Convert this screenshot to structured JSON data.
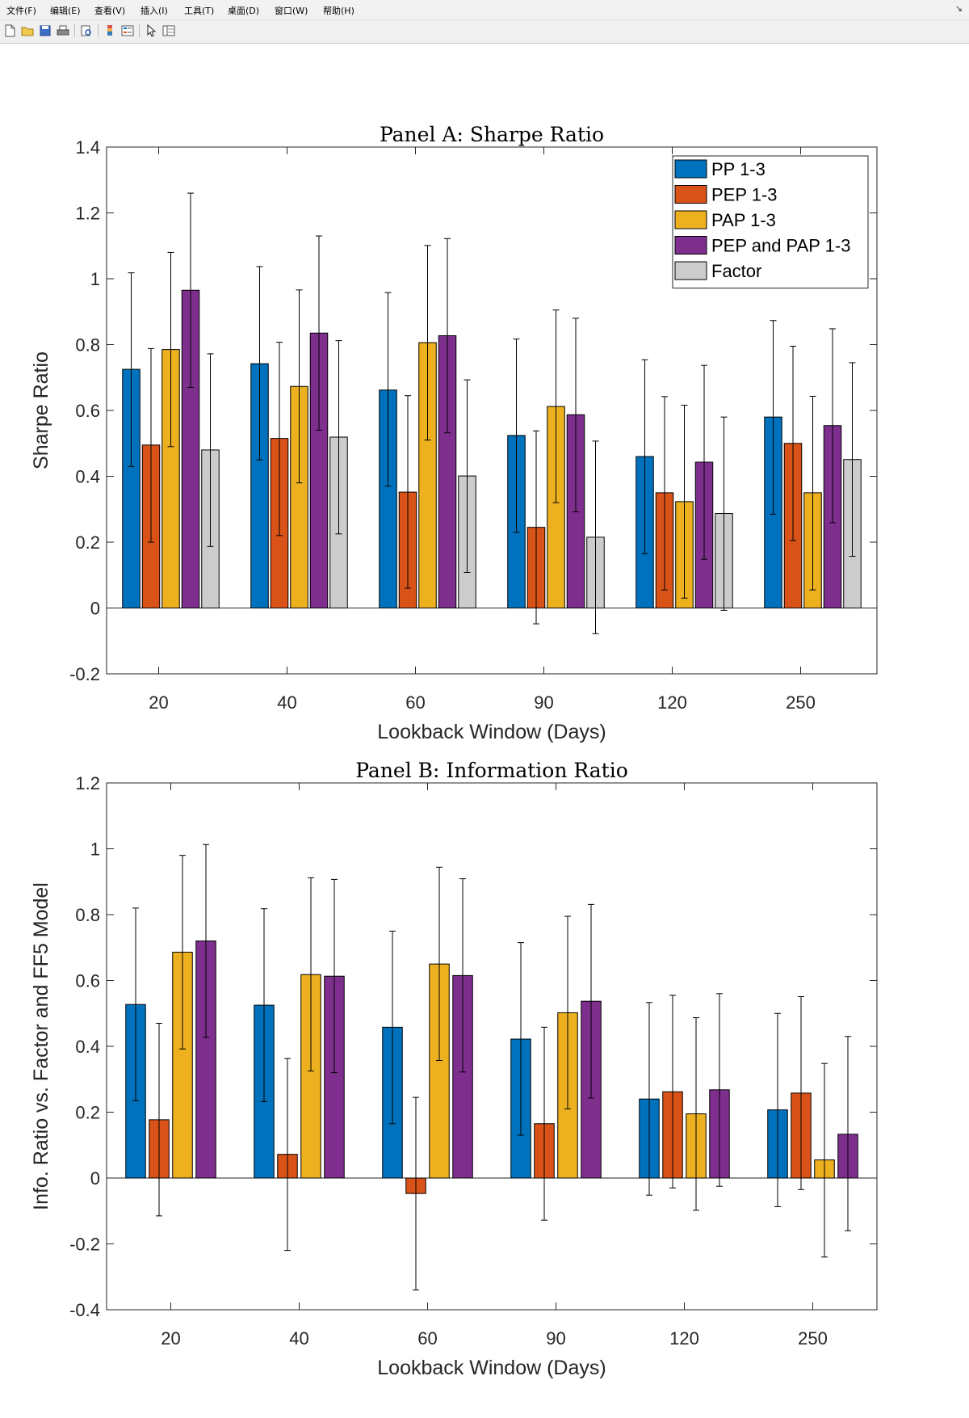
{
  "window": {
    "menus": [
      "文件(F)",
      "编辑(E)",
      "查看(V)",
      "插入(I)",
      "工具(T)",
      "桌面(D)",
      "窗口(W)",
      "帮助(H)"
    ],
    "toolbar_icons": [
      "new-file-icon",
      "open-folder-icon",
      "save-icon",
      "print-icon",
      "print-preview-icon",
      "colorbar-icon",
      "legend-icon",
      "pointer-icon",
      "property-inspector-icon"
    ],
    "corner_glyph": "↘"
  },
  "colors": {
    "pp": "#0072BD",
    "pep": "#D95319",
    "pap": "#EDB120",
    "pep_pap": "#7E2F8E",
    "factor": "#CCCCCC"
  },
  "chart_data": [
    {
      "type": "bar",
      "title": "Panel A: Sharpe Ratio",
      "xlabel": "Lookback Window (Days)",
      "ylabel": "Sharpe Ratio",
      "ylim": [
        -0.2,
        1.4
      ],
      "yticks": [
        "-0.2",
        "0",
        "0.2",
        "0.4",
        "0.6",
        "0.8",
        "1",
        "1.2",
        "1.4"
      ],
      "categories": [
        "20",
        "40",
        "60",
        "90",
        "120",
        "250"
      ],
      "legend_position": "top-right",
      "grid": false,
      "series": [
        {
          "name": "PP 1-3",
          "color": "#0072BD",
          "values": [
            0.725,
            0.742,
            0.662,
            0.524,
            0.46,
            0.58
          ],
          "err_low": [
            0.43,
            0.45,
            0.37,
            0.23,
            0.165,
            0.285
          ],
          "err_high": [
            1.018,
            1.037,
            0.958,
            0.817,
            0.754,
            0.873
          ]
        },
        {
          "name": "PEP 1-3",
          "color": "#D95319",
          "values": [
            0.495,
            0.515,
            0.352,
            0.245,
            0.35,
            0.5
          ],
          "err_low": [
            0.2,
            0.22,
            0.06,
            -0.048,
            0.055,
            0.205
          ],
          "err_high": [
            0.788,
            0.807,
            0.645,
            0.538,
            0.642,
            0.795
          ]
        },
        {
          "name": "PAP 1-3",
          "color": "#EDB120",
          "values": [
            0.785,
            0.673,
            0.806,
            0.612,
            0.323,
            0.35
          ],
          "err_low": [
            0.49,
            0.38,
            0.51,
            0.32,
            0.03,
            0.055
          ],
          "err_high": [
            1.08,
            0.966,
            1.101,
            0.905,
            0.616,
            0.643
          ]
        },
        {
          "name": "PEP and PAP 1-3",
          "color": "#7E2F8E",
          "values": [
            0.965,
            0.835,
            0.827,
            0.587,
            0.443,
            0.554
          ],
          "err_low": [
            0.67,
            0.54,
            0.532,
            0.292,
            0.148,
            0.259
          ],
          "err_high": [
            1.26,
            1.13,
            1.122,
            0.88,
            0.737,
            0.848
          ]
        },
        {
          "name": "Factor",
          "color": "#CCCCCC",
          "values": [
            0.48,
            0.519,
            0.401,
            0.215,
            0.287,
            0.451
          ],
          "err_low": [
            0.187,
            0.225,
            0.108,
            -0.078,
            -0.007,
            0.157
          ],
          "err_high": [
            0.772,
            0.812,
            0.693,
            0.507,
            0.58,
            0.745
          ]
        }
      ]
    },
    {
      "type": "bar",
      "title": "Panel B: Information Ratio",
      "xlabel": "Lookback Window (Days)",
      "ylabel": "Info. Ratio vs. Factor and FF5 Model",
      "ylim": [
        -0.4,
        1.2
      ],
      "yticks": [
        "-0.4",
        "-0.2",
        "0",
        "0.2",
        "0.4",
        "0.6",
        "0.8",
        "1",
        "1.2"
      ],
      "categories": [
        "20",
        "40",
        "60",
        "90",
        "120",
        "250"
      ],
      "grid": false,
      "series": [
        {
          "color": "#0072BD",
          "values": [
            0.527,
            0.525,
            0.458,
            0.422,
            0.24,
            0.207
          ],
          "err_low": [
            0.235,
            0.232,
            0.165,
            0.13,
            -0.052,
            -0.087
          ],
          "err_high": [
            0.82,
            0.818,
            0.75,
            0.715,
            0.533,
            0.5
          ]
        },
        {
          "color": "#D95319",
          "values": [
            0.177,
            0.072,
            -0.047,
            0.165,
            0.262,
            0.258
          ],
          "err_low": [
            -0.115,
            -0.22,
            -0.34,
            -0.128,
            -0.03,
            -0.035
          ],
          "err_high": [
            0.47,
            0.363,
            0.245,
            0.458,
            0.555,
            0.551
          ]
        },
        {
          "color": "#EDB120",
          "values": [
            0.686,
            0.618,
            0.65,
            0.502,
            0.195,
            0.055
          ],
          "err_low": [
            0.392,
            0.325,
            0.357,
            0.21,
            -0.098,
            -0.24
          ],
          "err_high": [
            0.98,
            0.912,
            0.944,
            0.795,
            0.487,
            0.348
          ]
        },
        {
          "color": "#7E2F8E",
          "values": [
            0.72,
            0.613,
            0.615,
            0.537,
            0.268,
            0.133
          ],
          "err_low": [
            0.427,
            0.32,
            0.322,
            0.243,
            -0.025,
            -0.16
          ],
          "err_high": [
            1.013,
            0.907,
            0.909,
            0.831,
            0.56,
            0.43
          ]
        }
      ]
    }
  ]
}
